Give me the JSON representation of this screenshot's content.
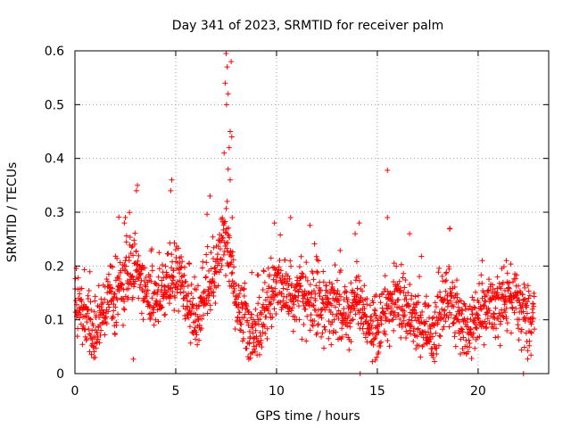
{
  "chart_data": {
    "type": "scatter",
    "title": "Day 341 of 2023, SRMTID for receiver palm",
    "xlabel": "GPS time / hours",
    "ylabel": "SRMTID / TECUs",
    "xlim": [
      0,
      23.5
    ],
    "ylim": [
      0,
      0.6
    ],
    "xticks": [
      0,
      5,
      10,
      15,
      20
    ],
    "yticks": [
      0,
      0.1,
      0.2,
      0.3,
      0.4,
      0.5,
      0.6
    ],
    "xtick_labels": [
      "0",
      "5",
      "10",
      "15",
      "20"
    ],
    "ytick_labels": [
      "0",
      "0.1",
      "0.2",
      "0.3",
      "0.4",
      "0.5",
      "0.6"
    ],
    "grid": true,
    "marker": "+",
    "color": "#ff0000",
    "n_points": 1900,
    "profile": [
      [
        0.0,
        0.13
      ],
      [
        0.5,
        0.1
      ],
      [
        1.0,
        0.08
      ],
      [
        1.5,
        0.13
      ],
      [
        2.0,
        0.14
      ],
      [
        2.5,
        0.18
      ],
      [
        3.0,
        0.2
      ],
      [
        3.5,
        0.15
      ],
      [
        4.0,
        0.12
      ],
      [
        4.5,
        0.16
      ],
      [
        5.0,
        0.19
      ],
      [
        5.5,
        0.14
      ],
      [
        6.0,
        0.1
      ],
      [
        6.5,
        0.15
      ],
      [
        7.0,
        0.2
      ],
      [
        7.5,
        0.26
      ],
      [
        8.0,
        0.12
      ],
      [
        8.5,
        0.09
      ],
      [
        9.0,
        0.07
      ],
      [
        9.5,
        0.13
      ],
      [
        10.0,
        0.17
      ],
      [
        10.5,
        0.16
      ],
      [
        11.0,
        0.15
      ],
      [
        11.5,
        0.14
      ],
      [
        12.0,
        0.13
      ],
      [
        12.5,
        0.12
      ],
      [
        13.0,
        0.12
      ],
      [
        13.5,
        0.1
      ],
      [
        14.0,
        0.15
      ],
      [
        14.5,
        0.09
      ],
      [
        15.0,
        0.08
      ],
      [
        15.5,
        0.12
      ],
      [
        16.0,
        0.14
      ],
      [
        16.5,
        0.11
      ],
      [
        17.0,
        0.09
      ],
      [
        17.5,
        0.08
      ],
      [
        18.0,
        0.09
      ],
      [
        18.5,
        0.14
      ],
      [
        19.0,
        0.1
      ],
      [
        19.5,
        0.09
      ],
      [
        20.0,
        0.1
      ],
      [
        20.5,
        0.13
      ],
      [
        21.0,
        0.12
      ],
      [
        21.5,
        0.14
      ],
      [
        22.0,
        0.13
      ],
      [
        22.5,
        0.09
      ],
      [
        22.8,
        0.11
      ]
    ],
    "highlights": [
      {
        "x": 7.5,
        "y": 0.595
      },
      {
        "x": 7.55,
        "y": 0.57
      },
      {
        "x": 7.75,
        "y": 0.58
      },
      {
        "x": 7.45,
        "y": 0.54
      },
      {
        "x": 7.6,
        "y": 0.52
      },
      {
        "x": 7.52,
        "y": 0.5
      },
      {
        "x": 7.7,
        "y": 0.45
      },
      {
        "x": 7.78,
        "y": 0.44
      },
      {
        "x": 7.65,
        "y": 0.42
      },
      {
        "x": 7.4,
        "y": 0.41
      },
      {
        "x": 7.6,
        "y": 0.38
      },
      {
        "x": 7.7,
        "y": 0.36
      },
      {
        "x": 7.55,
        "y": 0.32
      },
      {
        "x": 7.8,
        "y": 0.29
      },
      {
        "x": 15.5,
        "y": 0.378
      },
      {
        "x": 18.6,
        "y": 0.27
      },
      {
        "x": 4.8,
        "y": 0.36
      },
      {
        "x": 4.75,
        "y": 0.34
      },
      {
        "x": 3.1,
        "y": 0.35
      },
      {
        "x": 3.05,
        "y": 0.34
      },
      {
        "x": 2.5,
        "y": 0.29
      },
      {
        "x": 2.45,
        "y": 0.28
      },
      {
        "x": 6.7,
        "y": 0.33
      },
      {
        "x": 10.7,
        "y": 0.29
      },
      {
        "x": 9.9,
        "y": 0.28
      },
      {
        "x": 14.1,
        "y": 0.28
      },
      {
        "x": 13.9,
        "y": 0.26
      },
      {
        "x": 16.6,
        "y": 0.26
      },
      {
        "x": 15.5,
        "y": 0.29
      },
      {
        "x": 21.4,
        "y": 0.21
      },
      {
        "x": 20.2,
        "y": 0.21
      },
      {
        "x": 2.9,
        "y": 0.027
      },
      {
        "x": 14.15,
        "y": 0.0
      },
      {
        "x": 22.25,
        "y": 0.0
      },
      {
        "x": 14.9,
        "y": 0.025
      },
      {
        "x": 1.0,
        "y": 0.03
      }
    ]
  }
}
